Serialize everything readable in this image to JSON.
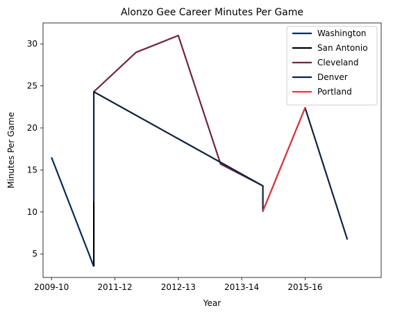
{
  "chart_data": {
    "type": "line",
    "title": "Alonzo Gee Career Minutes Per Game",
    "xlabel": "Year",
    "ylabel": "Minutes Per Game",
    "xlim": [
      2009.3,
      2017.3
    ],
    "ylim": [
      2.2,
      32.5
    ],
    "x_ticks": [
      {
        "value": 2009.5,
        "label": "2009-10"
      },
      {
        "value": 2011.0,
        "label": "2011-12"
      },
      {
        "value": 2012.5,
        "label": "2012-13"
      },
      {
        "value": 2014.0,
        "label": "2013-14"
      },
      {
        "value": 2015.5,
        "label": "2015-16"
      }
    ],
    "y_ticks": [
      5,
      10,
      15,
      20,
      25,
      30
    ],
    "grid": false,
    "legend_position": "top-right",
    "series": [
      {
        "name": "Washington",
        "color": "#002B5C",
        "points": [
          [
            2009.5,
            16.5
          ],
          [
            2010.5,
            3.5
          ]
        ]
      },
      {
        "name": "San Antonio",
        "color": "#000000",
        "points": [
          [
            2010.5,
            3.5
          ],
          [
            2010.5,
            11.3
          ]
        ]
      },
      {
        "name": "Cleveland",
        "color": "#6F263D",
        "points": [
          [
            2010.5,
            24.3
          ],
          [
            2011.5,
            29.0
          ],
          [
            2012.5,
            31.0
          ],
          [
            2013.5,
            15.7
          ],
          [
            2014.5,
            13.1
          ]
        ]
      },
      {
        "name": "Denver",
        "color": "#0E2240",
        "points": [
          [
            2010.5,
            11.3
          ],
          [
            2010.5,
            24.3
          ],
          [
            2014.5,
            13.1
          ],
          [
            2014.5,
            10.1
          ],
          [
            2015.5,
            22.4
          ],
          [
            2016.5,
            6.7
          ]
        ]
      },
      {
        "name": "Portland",
        "color": "#E03A3E",
        "points": [
          [
            2014.5,
            10.1
          ],
          [
            2015.5,
            22.4
          ]
        ]
      }
    ]
  }
}
